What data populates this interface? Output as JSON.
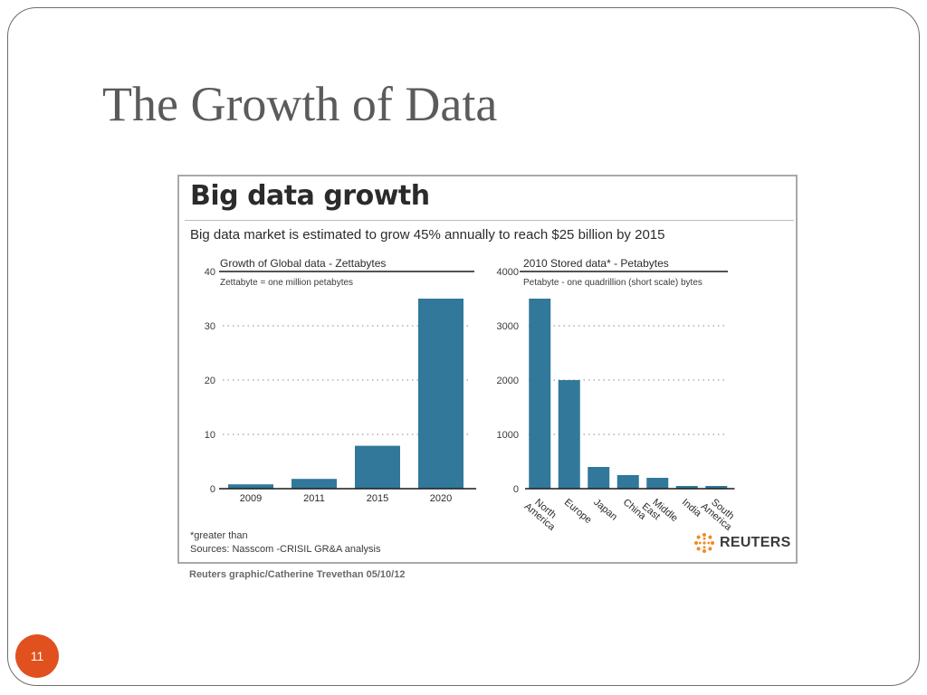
{
  "slide": {
    "title": "The Growth of Data",
    "page_number": "11",
    "credit": "Reuters graphic/Catherine Trevethan    05/10/12",
    "accent_color": "#e0511f"
  },
  "figure": {
    "title": "Big data growth",
    "subtitle": "Big data market is estimated to grow 45% annually to reach $25 billion by 2015",
    "footnote": "*greater than",
    "sources": "Sources: Nasscom -CRISIL GR&A analysis",
    "logo": {
      "icon": "reuters-logo-icon",
      "text": "REUTERS"
    }
  },
  "chart_data": [
    {
      "type": "bar",
      "title": "Growth of Global data - Zettabytes",
      "subtitle": "Zettabyte = one million petabytes",
      "categories": [
        "2009",
        "2011",
        "2015",
        "2020"
      ],
      "values": [
        0.8,
        1.8,
        7.9,
        35
      ],
      "ylim": [
        0,
        40
      ],
      "yticks": [
        0,
        10,
        20,
        30,
        40
      ],
      "xlabel": "",
      "ylabel": "",
      "grid": "dotted horizontal",
      "bar_color": "#31789a"
    },
    {
      "type": "bar",
      "title": "2010 Stored data* - Petabytes",
      "subtitle": "Petabyte - one quadrillion (short scale) bytes",
      "categories": [
        "North America",
        "Europe",
        "Japan",
        "China",
        "Middle East",
        "India",
        "South America"
      ],
      "values": [
        3500,
        2000,
        400,
        250,
        200,
        50,
        50
      ],
      "ylim": [
        0,
        4000
      ],
      "yticks": [
        0,
        1000,
        2000,
        3000,
        4000
      ],
      "xlabel": "",
      "ylabel": "",
      "grid": "dotted horizontal",
      "bar_color": "#31789a"
    }
  ]
}
